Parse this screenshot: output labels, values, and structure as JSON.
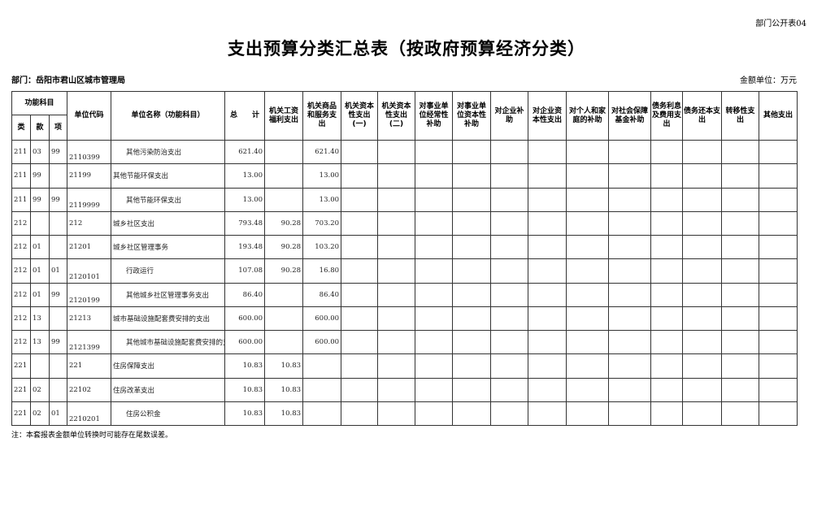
{
  "form_no": "部门公开表04",
  "title": "支出预算分类汇总表（按政府预算经济分类）",
  "department": "部门：岳阳市君山区城市管理局",
  "unit": "金额单位：万元",
  "headers": {
    "func": "功能科目",
    "lei": "类",
    "kuan": "款",
    "xiang": "项",
    "code": "单位代码",
    "name": "单位名称（功能科目）",
    "total": "总　　计",
    "cols": [
      "机关工资福利支出",
      "机关商品和服务支出",
      "机关资本性支出(一)",
      "机关资本性支出(二)",
      "对事业单位经常性补助",
      "对事业单位资本性补助",
      "对企业补助",
      "对企业资本性支出",
      "对个人和家庭的补助",
      "对社会保障基金补助",
      "债务利息及费用支出",
      "债务还本支出",
      "转移性支出",
      "其他支出"
    ]
  },
  "rows": [
    {
      "lei": "211",
      "kuan": "03",
      "xiang": "99",
      "code": "2110399",
      "name": "其他污染防治支出",
      "total": "621.40",
      "wage": "",
      "goods": "621.40",
      "leaf": true
    },
    {
      "lei": "211",
      "kuan": "99",
      "xiang": "",
      "code": "21199",
      "name": "其他节能环保支出",
      "total": "13.00",
      "wage": "",
      "goods": "13.00",
      "leaf": false
    },
    {
      "lei": "211",
      "kuan": "99",
      "xiang": "99",
      "code": "2119999",
      "name": "其他节能环保支出",
      "total": "13.00",
      "wage": "",
      "goods": "13.00",
      "leaf": true
    },
    {
      "lei": "212",
      "kuan": "",
      "xiang": "",
      "code": "212",
      "name": "城乡社区支出",
      "total": "793.48",
      "wage": "90.28",
      "goods": "703.20",
      "leaf": false
    },
    {
      "lei": "212",
      "kuan": "01",
      "xiang": "",
      "code": "21201",
      "name": "城乡社区管理事务",
      "total": "193.48",
      "wage": "90.28",
      "goods": "103.20",
      "leaf": false
    },
    {
      "lei": "212",
      "kuan": "01",
      "xiang": "01",
      "code": "2120101",
      "name": "行政运行",
      "total": "107.08",
      "wage": "90.28",
      "goods": "16.80",
      "leaf": true
    },
    {
      "lei": "212",
      "kuan": "01",
      "xiang": "99",
      "code": "2120199",
      "name": "其他城乡社区管理事务支出",
      "total": "86.40",
      "wage": "",
      "goods": "86.40",
      "leaf": true
    },
    {
      "lei": "212",
      "kuan": "13",
      "xiang": "",
      "code": "21213",
      "name": "城市基础设施配套费安排的支出",
      "total": "600.00",
      "wage": "",
      "goods": "600.00",
      "leaf": false
    },
    {
      "lei": "212",
      "kuan": "13",
      "xiang": "99",
      "code": "2121399",
      "name": "其他城市基础设施配套费安排的支出",
      "total": "600.00",
      "wage": "",
      "goods": "600.00",
      "leaf": true
    },
    {
      "lei": "221",
      "kuan": "",
      "xiang": "",
      "code": "221",
      "name": "住房保障支出",
      "total": "10.83",
      "wage": "10.83",
      "goods": "",
      "leaf": false
    },
    {
      "lei": "221",
      "kuan": "02",
      "xiang": "",
      "code": "22102",
      "name": "住房改革支出",
      "total": "10.83",
      "wage": "10.83",
      "goods": "",
      "leaf": false
    },
    {
      "lei": "221",
      "kuan": "02",
      "xiang": "01",
      "code": "2210201",
      "name": "住房公积金",
      "total": "10.83",
      "wage": "10.83",
      "goods": "",
      "leaf": true
    }
  ],
  "note": "注：本套报表金额单位转换时可能存在尾数误差。"
}
